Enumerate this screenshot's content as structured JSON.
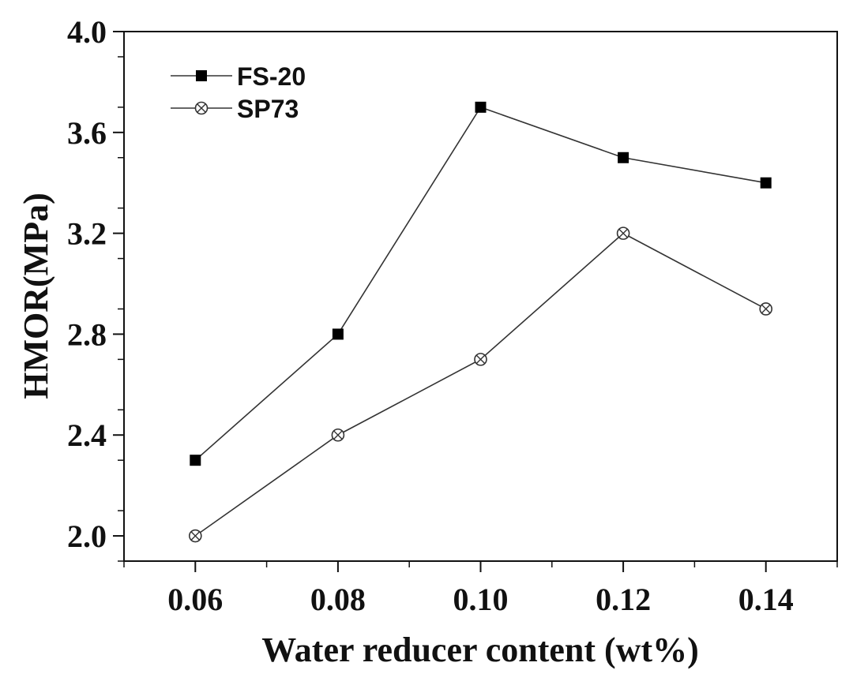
{
  "chart_data": {
    "type": "line",
    "title": "",
    "xlabel": "Water reducer content (wt%)",
    "ylabel": "HMOR(MPa)",
    "xlim": [
      0.05,
      0.15
    ],
    "ylim": [
      1.9,
      4.0
    ],
    "x_ticks": [
      "0.06",
      "0.08",
      "0.10",
      "0.12",
      "0.14"
    ],
    "y_ticks": [
      "2.0",
      "2.4",
      "2.8",
      "3.2",
      "3.6",
      "4.0"
    ],
    "x": [
      0.06,
      0.08,
      0.1,
      0.12,
      0.14
    ],
    "series": [
      {
        "name": "FS-20",
        "marker": "filled-square",
        "color": "#000000",
        "values": [
          2.3,
          2.8,
          3.7,
          3.5,
          3.4
        ]
      },
      {
        "name": "SP73",
        "marker": "crossed-circle",
        "color": "#333333",
        "values": [
          2.0,
          2.4,
          2.7,
          3.2,
          2.9
        ]
      }
    ],
    "legend_position": "top-left",
    "grid": false
  }
}
